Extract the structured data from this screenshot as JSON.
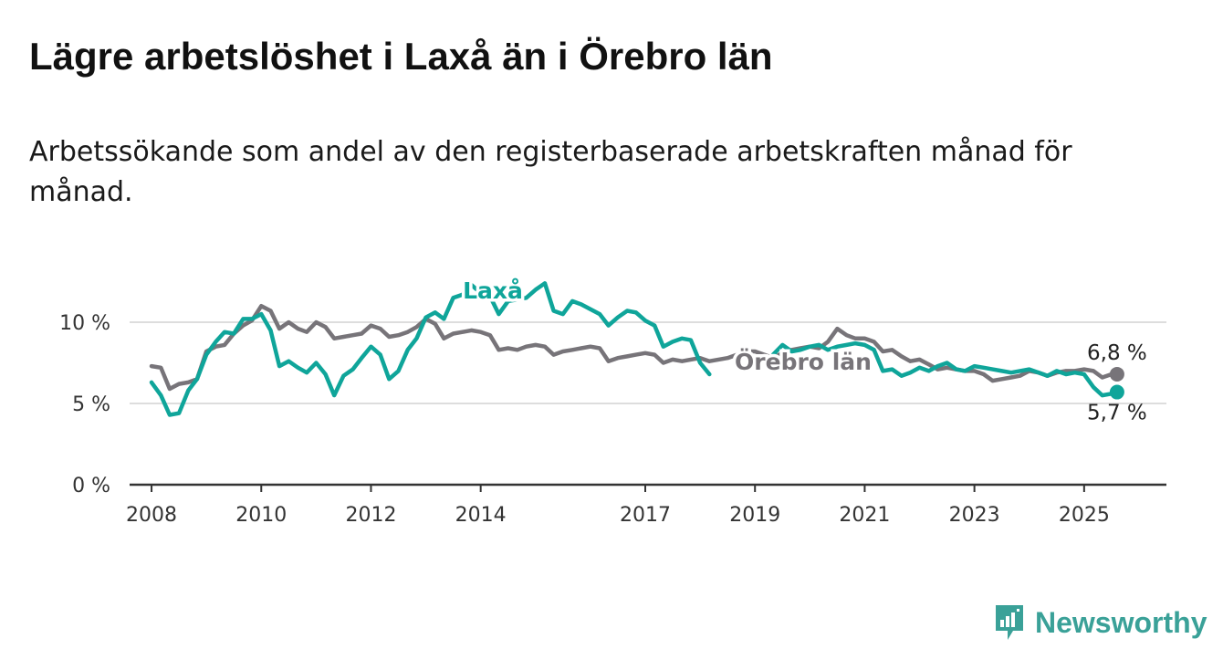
{
  "title": "Lägre arbetslöshet i Laxå än i Örebro län",
  "subtitle": "Arbetssökande som andel av den registerbaserade arbetskraften månad för månad.",
  "brand": {
    "name": "Newsworthy",
    "icon": "newsworthy-logo-icon",
    "color": "#3aa198"
  },
  "colors": {
    "laxa": "#0fa59a",
    "orebro": "#777479",
    "grid": "#dddddd",
    "axis": "#333333"
  },
  "chart_data": {
    "type": "line",
    "title": "Lägre arbetslöshet i Laxå än i Örebro län",
    "subtitle": "Arbetssökande som andel av den registerbaserade arbetskraften månad för månad.",
    "xlabel": "",
    "ylabel": "",
    "xlim": [
      2007.6,
      2026.5
    ],
    "ylim": [
      0,
      10
    ],
    "grid": true,
    "x_ticks": [
      2008,
      2010,
      2012,
      2014,
      2017,
      2019,
      2021,
      2023,
      2025
    ],
    "x_tick_labels": [
      "2008",
      "2010",
      "2012",
      "2014",
      "2017",
      "2019",
      "2021",
      "2023",
      "2025"
    ],
    "y_ticks": [
      0,
      5,
      10
    ],
    "y_tick_labels": [
      "0 %",
      "5 %",
      "10 %"
    ],
    "series": [
      {
        "name": "Örebro län",
        "color": "#777479",
        "end_label": "6,8 %",
        "points": [
          [
            2008.0,
            7.3
          ],
          [
            2008.17,
            7.2
          ],
          [
            2008.33,
            5.9
          ],
          [
            2008.5,
            6.2
          ],
          [
            2008.67,
            6.3
          ],
          [
            2008.83,
            6.5
          ],
          [
            2009.0,
            8.2
          ],
          [
            2009.17,
            8.5
          ],
          [
            2009.33,
            8.6
          ],
          [
            2009.5,
            9.3
          ],
          [
            2009.67,
            9.8
          ],
          [
            2009.83,
            10.1
          ],
          [
            2010.0,
            11.0
          ],
          [
            2010.17,
            10.7
          ],
          [
            2010.33,
            9.6
          ],
          [
            2010.5,
            10.0
          ],
          [
            2010.67,
            9.6
          ],
          [
            2010.83,
            9.4
          ],
          [
            2011.0,
            10.0
          ],
          [
            2011.17,
            9.7
          ],
          [
            2011.33,
            9.0
          ],
          [
            2011.5,
            9.1
          ],
          [
            2011.67,
            9.2
          ],
          [
            2011.83,
            9.3
          ],
          [
            2012.0,
            9.8
          ],
          [
            2012.17,
            9.6
          ],
          [
            2012.33,
            9.1
          ],
          [
            2012.5,
            9.2
          ],
          [
            2012.67,
            9.4
          ],
          [
            2012.83,
            9.7
          ],
          [
            2013.0,
            10.2
          ],
          [
            2013.17,
            9.9
          ],
          [
            2013.33,
            9.0
          ],
          [
            2013.5,
            9.3
          ],
          [
            2013.67,
            9.4
          ],
          [
            2013.83,
            9.5
          ],
          [
            2014.0,
            9.4
          ],
          [
            2014.17,
            9.2
          ],
          [
            2014.33,
            8.3
          ],
          [
            2014.5,
            8.4
          ],
          [
            2014.67,
            8.3
          ],
          [
            2014.83,
            8.5
          ],
          [
            2015.0,
            8.6
          ],
          [
            2015.17,
            8.5
          ],
          [
            2015.33,
            8.0
          ],
          [
            2015.5,
            8.2
          ],
          [
            2015.67,
            8.3
          ],
          [
            2015.83,
            8.4
          ],
          [
            2016.0,
            8.5
          ],
          [
            2016.17,
            8.4
          ],
          [
            2016.33,
            7.6
          ],
          [
            2016.5,
            7.8
          ],
          [
            2016.67,
            7.9
          ],
          [
            2016.83,
            8.0
          ],
          [
            2017.0,
            8.1
          ],
          [
            2017.17,
            8.0
          ],
          [
            2017.33,
            7.5
          ],
          [
            2017.5,
            7.7
          ],
          [
            2017.67,
            7.6
          ],
          [
            2017.83,
            7.7
          ],
          [
            2018.0,
            7.8
          ],
          [
            2018.17,
            7.6
          ],
          [
            2018.5,
            7.8
          ],
          [
            2018.67,
            8.0
          ],
          [
            2018.83,
            8.2
          ],
          [
            2019.0,
            8.2
          ],
          [
            2019.17,
            8.0
          ],
          [
            2019.33,
            7.8
          ],
          [
            2019.5,
            8.1
          ],
          [
            2019.67,
            8.3
          ],
          [
            2019.83,
            8.4
          ],
          [
            2020.0,
            8.5
          ],
          [
            2020.17,
            8.4
          ],
          [
            2020.33,
            8.8
          ],
          [
            2020.5,
            9.6
          ],
          [
            2020.67,
            9.2
          ],
          [
            2020.83,
            9.0
          ],
          [
            2021.0,
            9.0
          ],
          [
            2021.17,
            8.8
          ],
          [
            2021.33,
            8.2
          ],
          [
            2021.5,
            8.3
          ],
          [
            2021.67,
            7.9
          ],
          [
            2021.83,
            7.6
          ],
          [
            2022.0,
            7.7
          ],
          [
            2022.17,
            7.4
          ],
          [
            2022.33,
            7.1
          ],
          [
            2022.5,
            7.2
          ],
          [
            2022.67,
            7.1
          ],
          [
            2022.83,
            7.0
          ],
          [
            2023.0,
            7.0
          ],
          [
            2023.17,
            6.8
          ],
          [
            2023.33,
            6.4
          ],
          [
            2023.5,
            6.5
          ],
          [
            2023.67,
            6.6
          ],
          [
            2023.83,
            6.7
          ],
          [
            2024.0,
            7.0
          ],
          [
            2024.17,
            6.9
          ],
          [
            2024.33,
            6.7
          ],
          [
            2024.5,
            6.9
          ],
          [
            2024.67,
            7.0
          ],
          [
            2024.83,
            7.0
          ],
          [
            2025.0,
            7.1
          ],
          [
            2025.17,
            7.0
          ],
          [
            2025.33,
            6.6
          ],
          [
            2025.5,
            6.8
          ],
          [
            2025.6,
            6.8
          ]
        ]
      },
      {
        "name": "Laxå",
        "color": "#0fa59a",
        "end_label": "5,7 %",
        "points": [
          [
            2008.0,
            6.3
          ],
          [
            2008.17,
            5.5
          ],
          [
            2008.33,
            4.3
          ],
          [
            2008.5,
            4.4
          ],
          [
            2008.67,
            5.8
          ],
          [
            2008.83,
            6.5
          ],
          [
            2009.0,
            8.0
          ],
          [
            2009.17,
            8.8
          ],
          [
            2009.33,
            9.4
          ],
          [
            2009.5,
            9.3
          ],
          [
            2009.67,
            10.2
          ],
          [
            2009.83,
            10.2
          ],
          [
            2010.0,
            10.5
          ],
          [
            2010.17,
            9.5
          ],
          [
            2010.33,
            7.3
          ],
          [
            2010.5,
            7.6
          ],
          [
            2010.67,
            7.2
          ],
          [
            2010.83,
            6.9
          ],
          [
            2011.0,
            7.5
          ],
          [
            2011.17,
            6.8
          ],
          [
            2011.33,
            5.5
          ],
          [
            2011.5,
            6.7
          ],
          [
            2011.67,
            7.1
          ],
          [
            2011.83,
            7.8
          ],
          [
            2012.0,
            8.5
          ],
          [
            2012.17,
            8.0
          ],
          [
            2012.33,
            6.5
          ],
          [
            2012.5,
            7.0
          ],
          [
            2012.67,
            8.3
          ],
          [
            2012.83,
            9.0
          ],
          [
            2013.0,
            10.3
          ],
          [
            2013.17,
            10.6
          ],
          [
            2013.33,
            10.2
          ],
          [
            2013.5,
            11.5
          ],
          [
            2013.67,
            11.7
          ],
          [
            2013.83,
            12.3
          ],
          [
            2014.0,
            11.8
          ],
          [
            2014.17,
            11.6
          ],
          [
            2014.33,
            10.5
          ],
          [
            2014.5,
            11.3
          ],
          [
            2014.67,
            11.4
          ],
          [
            2014.83,
            11.5
          ],
          [
            2015.0,
            12.0
          ],
          [
            2015.17,
            12.4
          ],
          [
            2015.33,
            10.7
          ],
          [
            2015.5,
            10.5
          ],
          [
            2015.67,
            11.3
          ],
          [
            2015.83,
            11.1
          ],
          [
            2016.0,
            10.8
          ],
          [
            2016.17,
            10.5
          ],
          [
            2016.33,
            9.8
          ],
          [
            2016.5,
            10.3
          ],
          [
            2016.67,
            10.7
          ],
          [
            2016.83,
            10.6
          ],
          [
            2017.0,
            10.1
          ],
          [
            2017.17,
            9.8
          ],
          [
            2017.33,
            8.5
          ],
          [
            2017.5,
            8.8
          ],
          [
            2017.67,
            9.0
          ],
          [
            2017.83,
            8.9
          ],
          [
            2018.0,
            7.5
          ],
          [
            2018.17,
            6.8
          ],
          [
            2019.33,
            8.0
          ],
          [
            2019.5,
            8.6
          ],
          [
            2019.67,
            8.2
          ],
          [
            2019.83,
            8.3
          ],
          [
            2020.0,
            8.5
          ],
          [
            2020.17,
            8.6
          ],
          [
            2020.33,
            8.3
          ],
          [
            2020.5,
            8.5
          ],
          [
            2020.67,
            8.6
          ],
          [
            2020.83,
            8.7
          ],
          [
            2021.0,
            8.6
          ],
          [
            2021.17,
            8.3
          ],
          [
            2021.33,
            7.0
          ],
          [
            2021.5,
            7.1
          ],
          [
            2021.67,
            6.7
          ],
          [
            2021.83,
            6.9
          ],
          [
            2022.0,
            7.2
          ],
          [
            2022.17,
            7.0
          ],
          [
            2022.33,
            7.3
          ],
          [
            2022.5,
            7.5
          ],
          [
            2022.67,
            7.1
          ],
          [
            2022.83,
            7.0
          ],
          [
            2023.0,
            7.3
          ],
          [
            2023.17,
            7.2
          ],
          [
            2023.33,
            7.1
          ],
          [
            2023.5,
            7.0
          ],
          [
            2023.67,
            6.9
          ],
          [
            2023.83,
            7.0
          ],
          [
            2024.0,
            7.1
          ],
          [
            2024.17,
            6.9
          ],
          [
            2024.33,
            6.7
          ],
          [
            2024.5,
            7.0
          ],
          [
            2024.67,
            6.8
          ],
          [
            2024.83,
            6.9
          ],
          [
            2025.0,
            6.8
          ],
          [
            2025.17,
            6.0
          ],
          [
            2025.33,
            5.5
          ],
          [
            2025.5,
            5.6
          ],
          [
            2025.6,
            5.7
          ]
        ]
      }
    ]
  }
}
